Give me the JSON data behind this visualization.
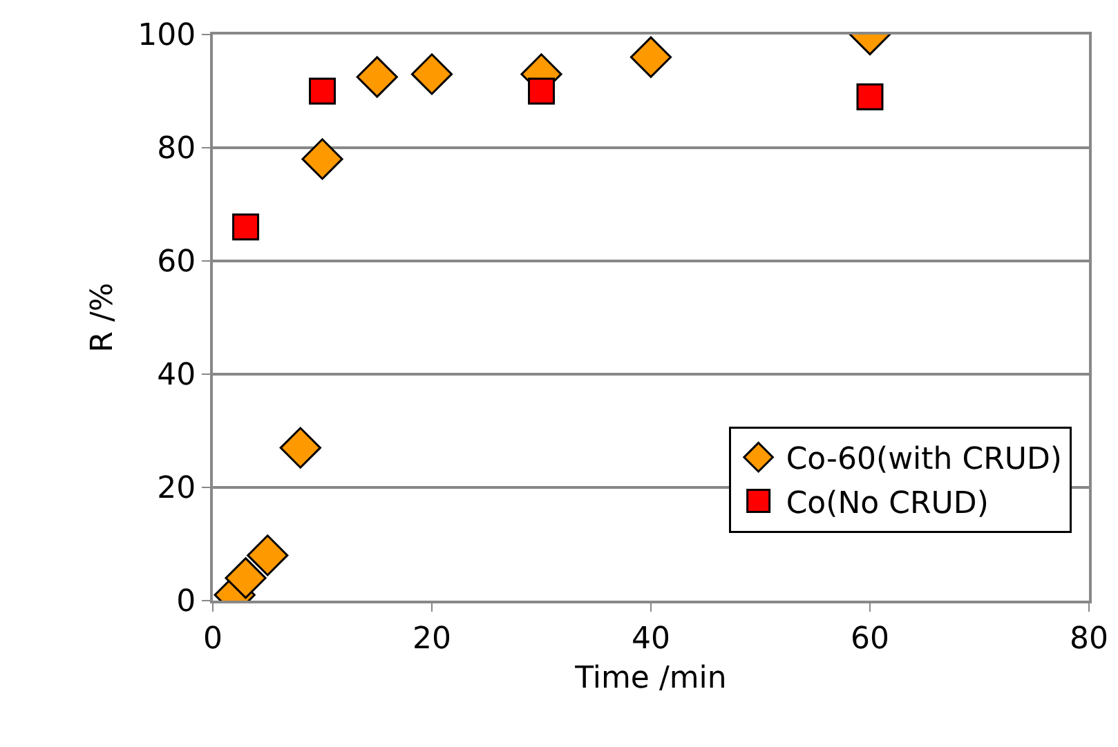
{
  "chart_data": {
    "type": "scatter",
    "xlabel": "Time /min",
    "ylabel": "R /%",
    "xlim": [
      0,
      80
    ],
    "xticks": [
      0,
      20,
      40,
      60,
      80
    ],
    "ylim": [
      0,
      100
    ],
    "yticks": [
      0,
      20,
      40,
      60,
      80,
      100
    ],
    "grid": "y",
    "legend": "bottom right",
    "series": [
      {
        "name": "Co-60(with CRUD)",
        "color": "#ff9900",
        "marker": "diamond",
        "x": [
          2,
          3,
          5,
          8,
          10,
          15,
          20,
          30,
          40,
          60
        ],
        "values": [
          1,
          4,
          8,
          27,
          78,
          92.5,
          93,
          93,
          96,
          100
        ]
      },
      {
        "name": "Co(No CRUD)",
        "color": "#ff0000",
        "marker": "square",
        "x": [
          3,
          10,
          30,
          60
        ],
        "values": [
          66,
          90,
          90,
          89
        ]
      }
    ]
  }
}
